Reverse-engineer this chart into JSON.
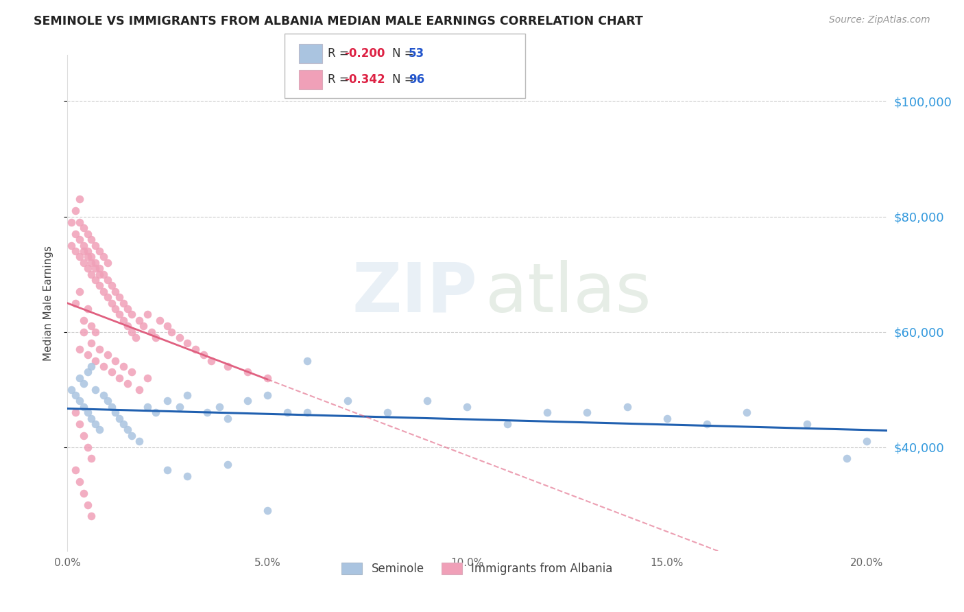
{
  "title": "SEMINOLE VS IMMIGRANTS FROM ALBANIA MEDIAN MALE EARNINGS CORRELATION CHART",
  "source": "Source: ZipAtlas.com",
  "ylabel": "Median Male Earnings",
  "y_ticks": [
    40000,
    60000,
    80000,
    100000
  ],
  "y_tick_labels": [
    "$40,000",
    "$60,000",
    "$80,000",
    "$100,000"
  ],
  "xlim": [
    0.0,
    0.205
  ],
  "ylim": [
    22000,
    108000
  ],
  "legend_blue_r": "-0.200",
  "legend_blue_n": "53",
  "legend_pink_r": "-0.342",
  "legend_pink_n": "96",
  "legend_label_blue": "Seminole",
  "legend_label_pink": "Immigrants from Albania",
  "blue_color": "#aac4e0",
  "pink_color": "#f0a0b8",
  "trendline_blue_color": "#2060b0",
  "trendline_pink_color": "#e06080",
  "seminole_x": [
    0.001,
    0.002,
    0.003,
    0.003,
    0.004,
    0.004,
    0.005,
    0.005,
    0.006,
    0.006,
    0.007,
    0.007,
    0.008,
    0.009,
    0.01,
    0.011,
    0.012,
    0.013,
    0.014,
    0.015,
    0.016,
    0.018,
    0.02,
    0.022,
    0.025,
    0.028,
    0.03,
    0.035,
    0.038,
    0.04,
    0.045,
    0.05,
    0.055,
    0.06,
    0.07,
    0.08,
    0.09,
    0.1,
    0.11,
    0.12,
    0.13,
    0.14,
    0.15,
    0.16,
    0.17,
    0.185,
    0.195,
    0.2,
    0.025,
    0.03,
    0.04,
    0.05,
    0.06
  ],
  "seminole_y": [
    50000,
    49000,
    48000,
    52000,
    47000,
    51000,
    46000,
    53000,
    45000,
    54000,
    44000,
    50000,
    43000,
    49000,
    48000,
    47000,
    46000,
    45000,
    44000,
    43000,
    42000,
    41000,
    47000,
    46000,
    48000,
    47000,
    49000,
    46000,
    47000,
    45000,
    48000,
    49000,
    46000,
    55000,
    48000,
    46000,
    48000,
    47000,
    44000,
    46000,
    46000,
    47000,
    45000,
    44000,
    46000,
    44000,
    38000,
    41000,
    36000,
    35000,
    37000,
    29000,
    46000
  ],
  "albania_x": [
    0.001,
    0.001,
    0.002,
    0.002,
    0.002,
    0.003,
    0.003,
    0.003,
    0.003,
    0.004,
    0.004,
    0.004,
    0.004,
    0.005,
    0.005,
    0.005,
    0.005,
    0.006,
    0.006,
    0.006,
    0.006,
    0.007,
    0.007,
    0.007,
    0.007,
    0.008,
    0.008,
    0.008,
    0.008,
    0.009,
    0.009,
    0.009,
    0.01,
    0.01,
    0.01,
    0.011,
    0.011,
    0.012,
    0.012,
    0.013,
    0.013,
    0.014,
    0.014,
    0.015,
    0.015,
    0.016,
    0.016,
    0.017,
    0.018,
    0.019,
    0.02,
    0.021,
    0.022,
    0.023,
    0.025,
    0.026,
    0.028,
    0.03,
    0.032,
    0.034,
    0.036,
    0.04,
    0.045,
    0.05,
    0.003,
    0.004,
    0.005,
    0.006,
    0.007,
    0.008,
    0.009,
    0.01,
    0.011,
    0.012,
    0.013,
    0.014,
    0.015,
    0.016,
    0.018,
    0.02,
    0.002,
    0.003,
    0.004,
    0.005,
    0.006,
    0.007,
    0.002,
    0.003,
    0.004,
    0.005,
    0.006,
    0.002,
    0.003,
    0.004,
    0.005,
    0.006
  ],
  "albania_y": [
    75000,
    79000,
    74000,
    77000,
    81000,
    73000,
    76000,
    79000,
    83000,
    72000,
    75000,
    78000,
    74000,
    71000,
    74000,
    77000,
    73000,
    70000,
    73000,
    76000,
    72000,
    69000,
    72000,
    75000,
    71000,
    68000,
    71000,
    74000,
    70000,
    67000,
    70000,
    73000,
    66000,
    69000,
    72000,
    65000,
    68000,
    64000,
    67000,
    63000,
    66000,
    62000,
    65000,
    61000,
    64000,
    60000,
    63000,
    59000,
    62000,
    61000,
    63000,
    60000,
    59000,
    62000,
    61000,
    60000,
    59000,
    58000,
    57000,
    56000,
    55000,
    54000,
    53000,
    52000,
    57000,
    60000,
    56000,
    58000,
    55000,
    57000,
    54000,
    56000,
    53000,
    55000,
    52000,
    54000,
    51000,
    53000,
    50000,
    52000,
    65000,
    67000,
    62000,
    64000,
    61000,
    60000,
    46000,
    44000,
    42000,
    40000,
    38000,
    36000,
    34000,
    32000,
    30000,
    28000
  ]
}
